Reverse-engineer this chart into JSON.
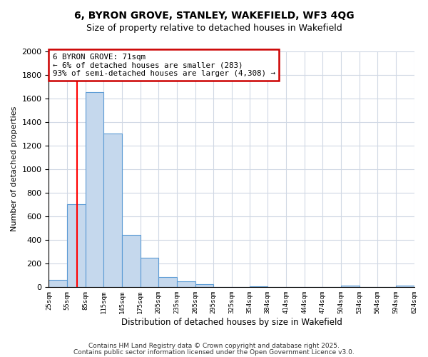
{
  "title1": "6, BYRON GROVE, STANLEY, WAKEFIELD, WF3 4QG",
  "title2": "Size of property relative to detached houses in Wakefield",
  "xlabel": "Distribution of detached houses by size in Wakefield",
  "ylabel": "Number of detached properties",
  "bar_color": "#c5d8ed",
  "bar_edge_color": "#5b9bd5",
  "background_color": "#ffffff",
  "grid_color": "#d0d8e4",
  "vline_color": "#ff0000",
  "vline_x": 71,
  "annotation_title": "6 BYRON GROVE: 71sqm",
  "annotation_line1": "← 6% of detached houses are smaller (283)",
  "annotation_line2": "93% of semi-detached houses are larger (4,308) →",
  "bin_edges": [
    25,
    55,
    85,
    115,
    145,
    175,
    205,
    235,
    265,
    295,
    325,
    354,
    384,
    414,
    444,
    474,
    504,
    534,
    564,
    594,
    624
  ],
  "bin_heights": [
    60,
    700,
    1650,
    1300,
    440,
    250,
    85,
    50,
    25,
    0,
    0,
    5,
    0,
    0,
    0,
    0,
    10,
    0,
    0,
    10
  ],
  "tick_labels": [
    "25sqm",
    "55sqm",
    "85sqm",
    "115sqm",
    "145sqm",
    "175sqm",
    "205sqm",
    "235sqm",
    "265sqm",
    "295sqm",
    "325sqm",
    "354sqm",
    "384sqm",
    "414sqm",
    "444sqm",
    "474sqm",
    "504sqm",
    "534sqm",
    "564sqm",
    "594sqm",
    "624sqm"
  ],
  "yticks": [
    0,
    200,
    400,
    600,
    800,
    1000,
    1200,
    1400,
    1600,
    1800,
    2000
  ],
  "ylim": [
    0,
    2000
  ],
  "footer1": "Contains HM Land Registry data © Crown copyright and database right 2025.",
  "footer2": "Contains public sector information licensed under the Open Government Licence v3.0."
}
